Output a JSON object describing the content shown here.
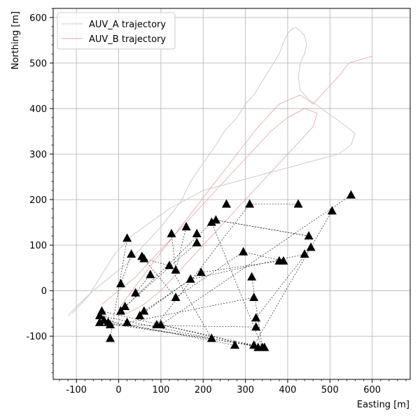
{
  "chart_data": {
    "type": "scatter",
    "xlabel": "Easting [m]",
    "ylabel": "Northing [m]",
    "xlim": [
      -155,
      690
    ],
    "ylim": [
      -195,
      620
    ],
    "x_ticks": [
      -100,
      0,
      100,
      200,
      300,
      400,
      500,
      600
    ],
    "y_ticks": [
      -100,
      0,
      100,
      200,
      300,
      400,
      500,
      600
    ],
    "x_tick_labels": [
      "-100",
      "0",
      "100",
      "200",
      "300",
      "400",
      "500",
      "600"
    ],
    "y_tick_labels": [
      "-100",
      "0",
      "100",
      "200",
      "300",
      "400",
      "500",
      "600"
    ],
    "grid": true,
    "legend_position": "top-left",
    "colors": {
      "auv_a": "#cccccc",
      "auv_b": "#e8a0a8",
      "markers": "#000000",
      "links": "#000000"
    },
    "series": [
      {
        "name": "AUV_A trajectory",
        "style": "line",
        "points": [
          [
            -120,
            -55
          ],
          [
            -100,
            -35
          ],
          [
            -60,
            0
          ],
          [
            -20,
            30
          ],
          [
            20,
            60
          ],
          [
            60,
            100
          ],
          [
            100,
            140
          ],
          [
            130,
            175
          ],
          [
            150,
            200
          ],
          [
            170,
            240
          ],
          [
            200,
            280
          ],
          [
            230,
            320
          ],
          [
            250,
            350
          ],
          [
            280,
            380
          ],
          [
            300,
            410
          ],
          [
            320,
            430
          ],
          [
            340,
            460
          ],
          [
            360,
            490
          ],
          [
            380,
            520
          ],
          [
            390,
            545
          ],
          [
            400,
            565
          ],
          [
            410,
            575
          ],
          [
            420,
            578
          ],
          [
            430,
            570
          ],
          [
            440,
            560
          ],
          [
            445,
            540
          ],
          [
            440,
            520
          ],
          [
            430,
            500
          ],
          [
            425,
            470
          ],
          [
            430,
            440
          ],
          [
            450,
            420
          ],
          [
            480,
            400
          ],
          [
            510,
            380
          ],
          [
            540,
            360
          ],
          [
            560,
            345
          ],
          [
            550,
            320
          ],
          [
            520,
            300
          ],
          [
            480,
            290
          ],
          [
            440,
            280
          ],
          [
            400,
            270
          ],
          [
            360,
            260
          ],
          [
            320,
            250
          ],
          [
            280,
            240
          ],
          [
            240,
            230
          ],
          [
            200,
            220
          ],
          [
            160,
            200
          ],
          [
            120,
            180
          ],
          [
            90,
            160
          ],
          [
            60,
            140
          ],
          [
            30,
            120
          ],
          [
            10,
            100
          ],
          [
            -10,
            80
          ],
          [
            -30,
            50
          ],
          [
            -50,
            20
          ],
          [
            -70,
            -10
          ],
          [
            -90,
            -30
          ],
          [
            -110,
            -50
          ]
        ]
      },
      {
        "name": "AUV_B trajectory",
        "style": "line",
        "points": [
          [
            -40,
            -30
          ],
          [
            0,
            0
          ],
          [
            40,
            30
          ],
          [
            80,
            70
          ],
          [
            120,
            110
          ],
          [
            160,
            150
          ],
          [
            200,
            190
          ],
          [
            240,
            230
          ],
          [
            280,
            270
          ],
          [
            320,
            310
          ],
          [
            360,
            350
          ],
          [
            400,
            380
          ],
          [
            440,
            400
          ],
          [
            470,
            390
          ],
          [
            460,
            360
          ],
          [
            430,
            330
          ],
          [
            400,
            300
          ],
          [
            370,
            270
          ],
          [
            340,
            240
          ],
          [
            300,
            200
          ],
          [
            260,
            160
          ],
          [
            220,
            120
          ],
          [
            180,
            80
          ],
          [
            140,
            40
          ],
          [
            100,
            0
          ],
          [
            60,
            -30
          ],
          [
            20,
            -50
          ],
          [
            0,
            -40
          ],
          [
            40,
            10
          ],
          [
            80,
            60
          ],
          [
            130,
            120
          ],
          [
            180,
            180
          ],
          [
            230,
            240
          ],
          [
            280,
            300
          ],
          [
            330,
            360
          ],
          [
            380,
            410
          ],
          [
            430,
            430
          ],
          [
            460,
            410
          ],
          [
            490,
            440
          ],
          [
            520,
            470
          ],
          [
            545,
            500
          ],
          [
            600,
            515
          ]
        ]
      },
      {
        "name": "",
        "style": "markers",
        "points": [
          [
            -20,
            -105
          ],
          [
            -45,
            -55
          ],
          [
            -40,
            -45
          ],
          [
            -35,
            -65
          ],
          [
            -25,
            -70
          ],
          [
            -20,
            -75
          ],
          [
            -45,
            -70
          ],
          [
            5,
            15
          ],
          [
            15,
            -35
          ],
          [
            5,
            -45
          ],
          [
            20,
            -70
          ],
          [
            20,
            115
          ],
          [
            30,
            80
          ],
          [
            40,
            -5
          ],
          [
            55,
            75
          ],
          [
            60,
            70
          ],
          [
            50,
            -55
          ],
          [
            60,
            -45
          ],
          [
            75,
            35
          ],
          [
            90,
            -75
          ],
          [
            100,
            -75
          ],
          [
            120,
            55
          ],
          [
            125,
            125
          ],
          [
            135,
            45
          ],
          [
            135,
            -15
          ],
          [
            160,
            140
          ],
          [
            170,
            25
          ],
          [
            185,
            125
          ],
          [
            185,
            105
          ],
          [
            195,
            40
          ],
          [
            220,
            150
          ],
          [
            230,
            155
          ],
          [
            220,
            -105
          ],
          [
            255,
            190
          ],
          [
            275,
            -120
          ],
          [
            295,
            85
          ],
          [
            310,
            190
          ],
          [
            315,
            30
          ],
          [
            320,
            -120
          ],
          [
            320,
            -15
          ],
          [
            325,
            -60
          ],
          [
            325,
            -80
          ],
          [
            330,
            -125
          ],
          [
            340,
            -125
          ],
          [
            345,
            -125
          ],
          [
            380,
            65
          ],
          [
            390,
            65
          ],
          [
            425,
            190
          ],
          [
            440,
            80
          ],
          [
            450,
            120
          ],
          [
            455,
            95
          ],
          [
            505,
            175
          ],
          [
            550,
            210
          ]
        ]
      }
    ],
    "links": [
      [
        [
          -20,
          -105
        ],
        [
          20,
          115
        ]
      ],
      [
        [
          -45,
          -55
        ],
        [
          220,
          -105
        ]
      ],
      [
        [
          -40,
          -45
        ],
        [
          330,
          -125
        ]
      ],
      [
        [
          -35,
          -65
        ],
        [
          275,
          -120
        ]
      ],
      [
        [
          -25,
          -70
        ],
        [
          345,
          -125
        ]
      ],
      [
        [
          -20,
          -75
        ],
        [
          325,
          -80
        ]
      ],
      [
        [
          -45,
          -70
        ],
        [
          320,
          -120
        ]
      ],
      [
        [
          5,
          15
        ],
        [
          30,
          80
        ]
      ],
      [
        [
          15,
          -35
        ],
        [
          185,
          105
        ]
      ],
      [
        [
          5,
          -45
        ],
        [
          220,
          150
        ]
      ],
      [
        [
          20,
          -70
        ],
        [
          320,
          -15
        ]
      ],
      [
        [
          40,
          -5
        ],
        [
          75,
          35
        ]
      ],
      [
        [
          55,
          75
        ],
        [
          135,
          -15
        ]
      ],
      [
        [
          60,
          70
        ],
        [
          120,
          55
        ]
      ],
      [
        [
          50,
          -55
        ],
        [
          170,
          25
        ]
      ],
      [
        [
          60,
          -45
        ],
        [
          195,
          40
        ]
      ],
      [
        [
          90,
          -75
        ],
        [
          310,
          190
        ]
      ],
      [
        [
          100,
          -75
        ],
        [
          550,
          210
        ]
      ],
      [
        [
          120,
          55
        ],
        [
          220,
          -105
        ]
      ],
      [
        [
          125,
          125
        ],
        [
          135,
          45
        ]
      ],
      [
        [
          135,
          45
        ],
        [
          160,
          140
        ]
      ],
      [
        [
          135,
          -15
        ],
        [
          295,
          85
        ]
      ],
      [
        [
          170,
          25
        ],
        [
          440,
          80
        ]
      ],
      [
        [
          185,
          125
        ],
        [
          185,
          105
        ]
      ],
      [
        [
          195,
          40
        ],
        [
          380,
          65
        ]
      ],
      [
        [
          230,
          155
        ],
        [
          450,
          120
        ]
      ],
      [
        [
          255,
          190
        ],
        [
          255,
          190
        ]
      ],
      [
        [
          310,
          190
        ],
        [
          425,
          190
        ]
      ],
      [
        [
          315,
          30
        ],
        [
          340,
          -125
        ]
      ],
      [
        [
          325,
          -60
        ],
        [
          455,
          95
        ]
      ],
      [
        [
          295,
          85
        ],
        [
          390,
          65
        ]
      ],
      [
        [
          320,
          -120
        ],
        [
          505,
          175
        ]
      ],
      [
        [
          340,
          -125
        ],
        [
          220,
          150
        ]
      ],
      [
        [
          345,
          -125
        ],
        [
          100,
          -75
        ]
      ],
      [
        [
          450,
          120
        ],
        [
          230,
          155
        ]
      ]
    ]
  }
}
